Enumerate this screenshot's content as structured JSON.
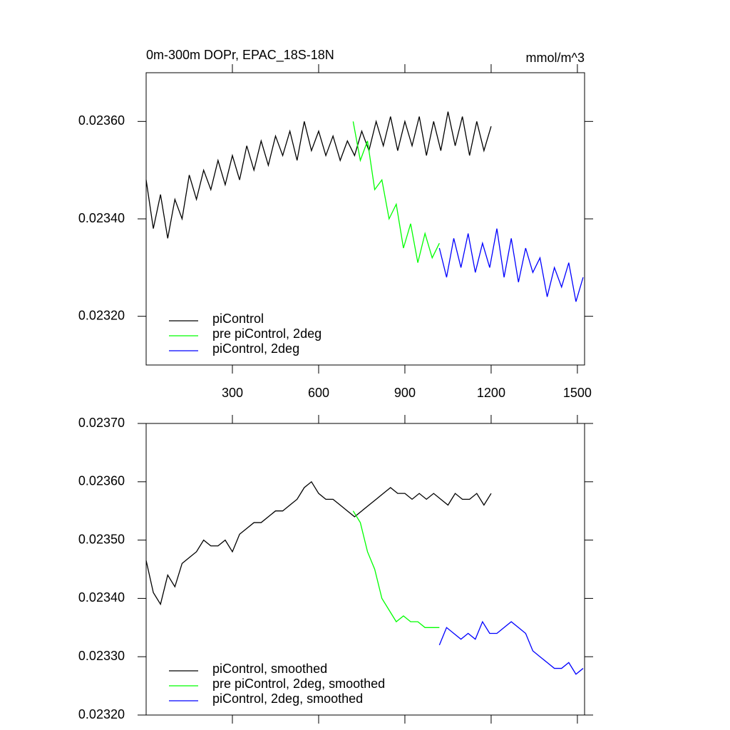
{
  "chart_data": [
    {
      "type": "line",
      "title": "0m-300m DOPr, EPAC_18S-18N",
      "units": "mmol/m^3",
      "xlim": [
        0,
        1525
      ],
      "xticks": [
        300,
        600,
        900,
        1200,
        1500
      ],
      "xtick_labels": true,
      "ylim": [
        0.0231,
        0.0237
      ],
      "yticks": [
        {
          "value": 0.0232,
          "label": "0.02320"
        },
        {
          "value": 0.0234,
          "label": "0.02340"
        },
        {
          "value": 0.0236,
          "label": "0.02360"
        }
      ],
      "legend": "lower left",
      "series": [
        {
          "name": "piControl",
          "color": "#000000",
          "x": [
            0,
            25,
            50,
            75,
            100,
            125,
            150,
            175,
            200,
            225,
            250,
            275,
            300,
            325,
            350,
            375,
            400,
            425,
            450,
            475,
            500,
            525,
            550,
            575,
            600,
            625,
            650,
            675,
            700,
            725,
            750,
            775,
            800,
            825,
            850,
            875,
            900,
            925,
            950,
            975,
            1000,
            1025,
            1050,
            1075,
            1100,
            1125,
            1150,
            1175,
            1200
          ],
          "values": [
            0.02348,
            0.02338,
            0.02345,
            0.02336,
            0.02344,
            0.0234,
            0.02349,
            0.02344,
            0.0235,
            0.02346,
            0.02352,
            0.02347,
            0.02353,
            0.02348,
            0.02355,
            0.0235,
            0.02356,
            0.02351,
            0.02357,
            0.02353,
            0.02358,
            0.02352,
            0.0236,
            0.02354,
            0.02358,
            0.02353,
            0.02357,
            0.02352,
            0.02356,
            0.02353,
            0.02358,
            0.02354,
            0.0236,
            0.02355,
            0.02361,
            0.02354,
            0.0236,
            0.02355,
            0.02361,
            0.02353,
            0.0236,
            0.02354,
            0.02362,
            0.02355,
            0.02361,
            0.02353,
            0.0236,
            0.02354,
            0.02359
          ]
        },
        {
          "name": "pre piControl, 2deg",
          "color": "#00ff00",
          "x": [
            720,
            745,
            770,
            795,
            820,
            845,
            870,
            895,
            920,
            945,
            970,
            995,
            1020
          ],
          "values": [
            0.0236,
            0.02352,
            0.02356,
            0.02346,
            0.02348,
            0.0234,
            0.02343,
            0.02334,
            0.02339,
            0.02331,
            0.02337,
            0.02332,
            0.02335
          ]
        },
        {
          "name": "piControl, 2deg",
          "color": "#0000ff",
          "x": [
            1020,
            1045,
            1070,
            1095,
            1120,
            1145,
            1170,
            1195,
            1220,
            1245,
            1270,
            1295,
            1320,
            1345,
            1370,
            1395,
            1420,
            1445,
            1470,
            1495,
            1520
          ],
          "values": [
            0.02334,
            0.02328,
            0.02336,
            0.0233,
            0.02337,
            0.02329,
            0.02335,
            0.0233,
            0.02338,
            0.02328,
            0.02336,
            0.02327,
            0.02334,
            0.02329,
            0.02332,
            0.02324,
            0.0233,
            0.02326,
            0.02331,
            0.02323,
            0.02328
          ]
        }
      ]
    },
    {
      "type": "line",
      "xlim": [
        0,
        1525
      ],
      "xticks": [
        300,
        600,
        900,
        1200,
        1500
      ],
      "xtick_labels": false,
      "ylim": [
        0.0232,
        0.0237
      ],
      "yticks": [
        {
          "value": 0.0232,
          "label": "0.02320"
        },
        {
          "value": 0.0233,
          "label": "0.02330"
        },
        {
          "value": 0.0234,
          "label": "0.02340"
        },
        {
          "value": 0.0235,
          "label": "0.02350"
        },
        {
          "value": 0.0236,
          "label": "0.02360"
        },
        {
          "value": 0.0237,
          "label": "0.02370"
        }
      ],
      "legend": "lower left",
      "series": [
        {
          "name": "piControl, smoothed",
          "color": "#000000",
          "x": [
            0,
            25,
            50,
            75,
            100,
            125,
            150,
            175,
            200,
            225,
            250,
            275,
            300,
            325,
            350,
            375,
            400,
            425,
            450,
            475,
            500,
            525,
            550,
            575,
            600,
            625,
            650,
            675,
            700,
            725,
            750,
            775,
            800,
            825,
            850,
            875,
            900,
            925,
            950,
            975,
            1000,
            1025,
            1050,
            1075,
            1100,
            1125,
            1150,
            1175,
            1200
          ],
          "values": [
            0.023465,
            0.02341,
            0.02339,
            0.02344,
            0.02342,
            0.02346,
            0.02347,
            0.02348,
            0.0235,
            0.02349,
            0.02349,
            0.0235,
            0.02348,
            0.02351,
            0.02352,
            0.02353,
            0.02353,
            0.02354,
            0.02355,
            0.02355,
            0.02356,
            0.02357,
            0.02359,
            0.0236,
            0.02358,
            0.02357,
            0.02357,
            0.02356,
            0.02355,
            0.02354,
            0.02355,
            0.02356,
            0.02357,
            0.02358,
            0.02359,
            0.02358,
            0.02358,
            0.02357,
            0.02358,
            0.02357,
            0.02358,
            0.02357,
            0.02356,
            0.02358,
            0.02357,
            0.02357,
            0.02358,
            0.02356,
            0.02358
          ]
        },
        {
          "name": "pre piControl, 2deg, smoothed",
          "color": "#00ff00",
          "x": [
            720,
            745,
            770,
            795,
            820,
            845,
            870,
            895,
            920,
            945,
            970,
            995,
            1020
          ],
          "values": [
            0.02355,
            0.02353,
            0.02348,
            0.02345,
            0.0234,
            0.02338,
            0.02336,
            0.02337,
            0.02336,
            0.02336,
            0.02335,
            0.02335,
            0.02335
          ]
        },
        {
          "name": "piControl, 2deg, smoothed",
          "color": "#0000ff",
          "x": [
            1020,
            1045,
            1070,
            1095,
            1120,
            1145,
            1170,
            1195,
            1220,
            1245,
            1270,
            1295,
            1320,
            1345,
            1370,
            1395,
            1420,
            1445,
            1470,
            1495,
            1520
          ],
          "values": [
            0.02332,
            0.02335,
            0.02334,
            0.02333,
            0.02334,
            0.02333,
            0.02336,
            0.02334,
            0.02334,
            0.02335,
            0.02336,
            0.02335,
            0.02334,
            0.02331,
            0.0233,
            0.02329,
            0.02328,
            0.02328,
            0.02329,
            0.02327,
            0.02328
          ]
        }
      ]
    }
  ]
}
